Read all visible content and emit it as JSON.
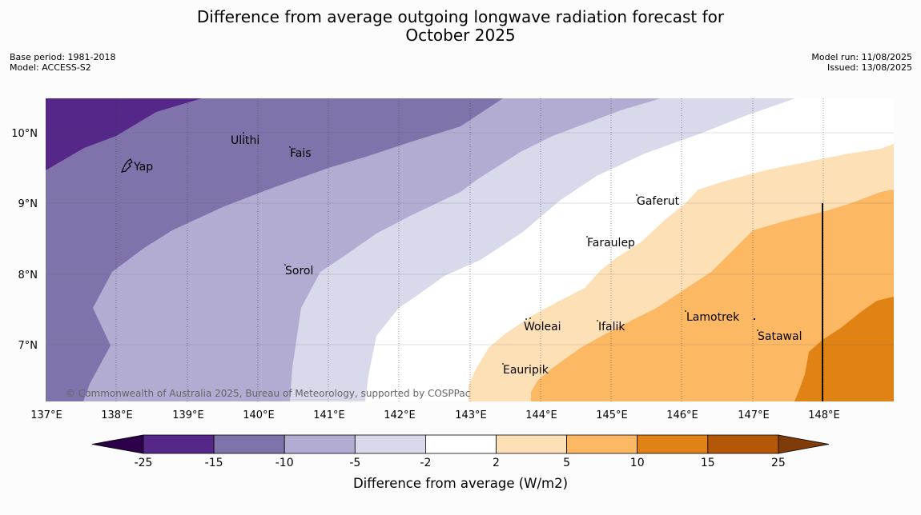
{
  "header": {
    "title": "Difference from average outgoing longwave radiation forecast for\nOctober 2025",
    "base_period": "Base period: 1981-2018",
    "model": "Model: ACCESS-S2",
    "model_run": "Model run: 11/08/2025",
    "issued": "Issued: 13/08/2025"
  },
  "map": {
    "lon_labels": [
      "137°E",
      "138°E",
      "139°E",
      "140°E",
      "141°E",
      "142°E",
      "143°E",
      "144°E",
      "145°E",
      "146°E",
      "147°E",
      "148°E"
    ],
    "lat_labels": [
      "10°N",
      "9°N",
      "8°N",
      "7°N"
    ],
    "places": [
      {
        "name": "Yap"
      },
      {
        "name": "Ulithi"
      },
      {
        "name": "Fais"
      },
      {
        "name": "Gaferut"
      },
      {
        "name": "Faraulep"
      },
      {
        "name": "Sorol"
      },
      {
        "name": "Woleai"
      },
      {
        "name": "Ifalik"
      },
      {
        "name": "Lamotrek"
      },
      {
        "name": "Satawal"
      },
      {
        "name": "Eauripik"
      }
    ],
    "copyright": "© Commonwealth of Australia 2025, Bureau of Meteorology, supported by COSPPac"
  },
  "colorbar": {
    "title": "Difference from average (W/m2)",
    "ticks": [
      "-25",
      "-15",
      "-10",
      "-5",
      "-2",
      "2",
      "5",
      "10",
      "15",
      "25"
    ],
    "colors": [
      "#2d004b",
      "#542788",
      "#8073ac",
      "#b2abd2",
      "#d8daeb",
      "#ffffff",
      "#fee0b6",
      "#fdb863",
      "#e08214",
      "#b35806",
      "#7f3b08"
    ]
  }
}
